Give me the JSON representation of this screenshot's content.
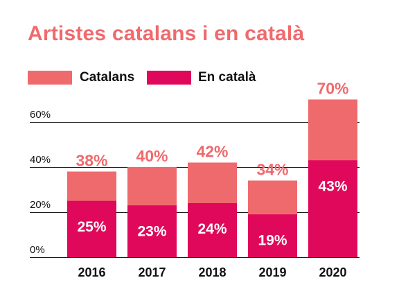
{
  "chart_data": {
    "type": "bar",
    "stacked": false,
    "title": "Artistes catalans i en català",
    "categories": [
      "2016",
      "2017",
      "2018",
      "2019",
      "2020"
    ],
    "series": [
      {
        "name": "Catalans",
        "values": [
          38,
          40,
          42,
          34,
          70
        ],
        "labels": [
          "38%",
          "40%",
          "42%",
          "34%",
          "70%"
        ],
        "color": "#ef6a6d"
      },
      {
        "name": "En català",
        "values": [
          25,
          23,
          24,
          19,
          43
        ],
        "labels": [
          "25%",
          "23%",
          "24%",
          "19%",
          "43%"
        ],
        "color": "#e0085a"
      }
    ],
    "yticks": [
      {
        "value": 0,
        "label": "0%"
      },
      {
        "value": 20,
        "label": "20%"
      },
      {
        "value": 40,
        "label": "40%"
      },
      {
        "value": 60,
        "label": "60%"
      }
    ],
    "ylim": [
      0,
      72
    ],
    "xlabel": "",
    "ylabel": "",
    "grid": true,
    "legend_position": "top-left"
  }
}
